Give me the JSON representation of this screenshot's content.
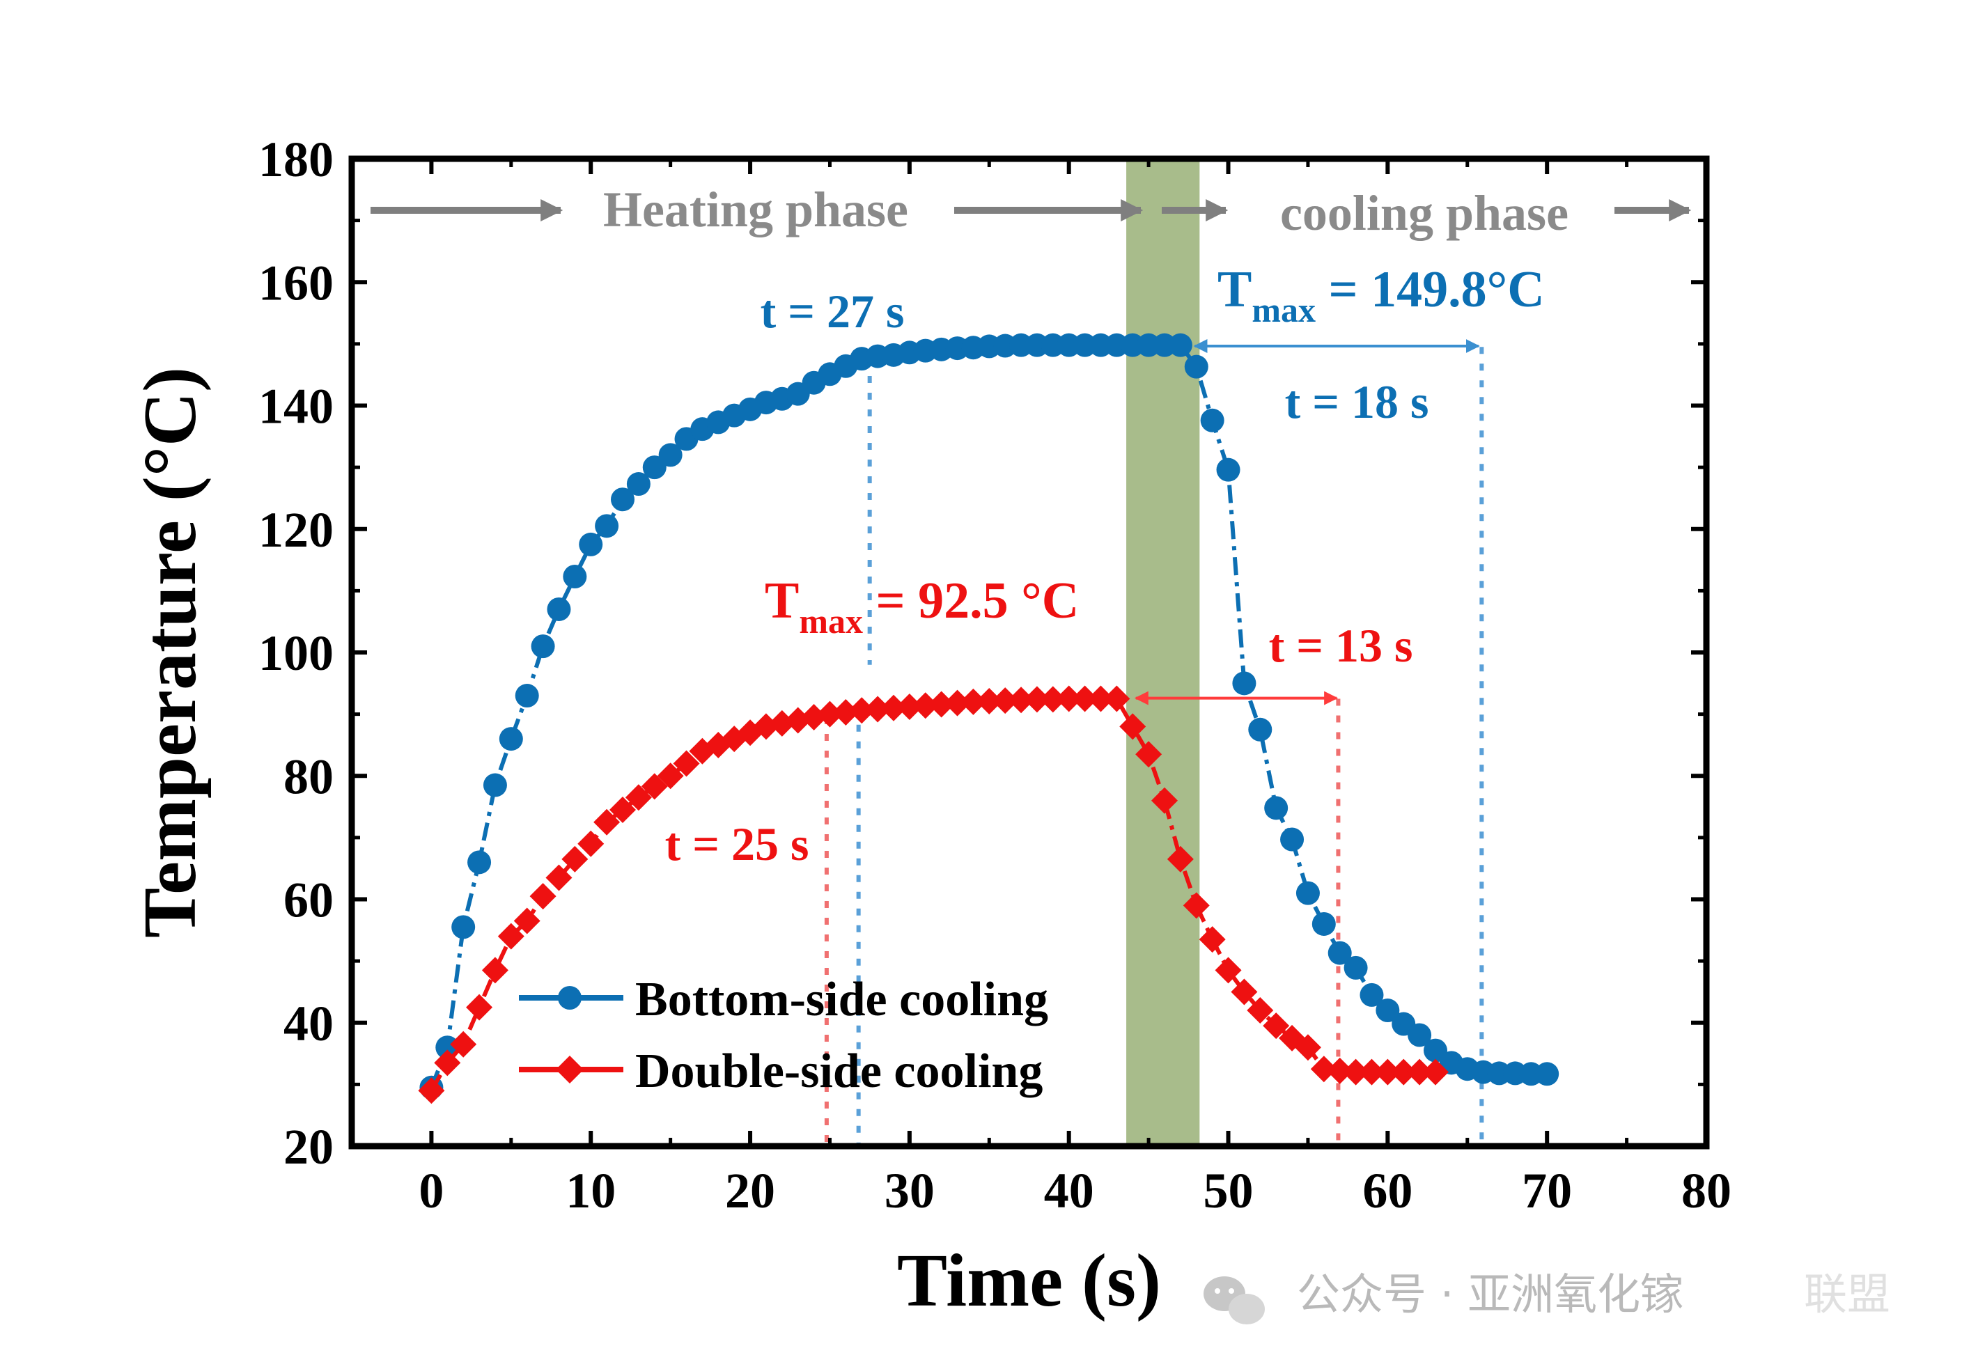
{
  "chart_data": {
    "type": "line",
    "xlabel": "Time (s)",
    "ylabel": "Temperature (°C)",
    "xlim": [
      -5,
      80
    ],
    "ylim": [
      20,
      180
    ],
    "xticks": [
      0,
      10,
      20,
      30,
      40,
      50,
      60,
      70,
      80
    ],
    "yticks": [
      20,
      40,
      60,
      80,
      100,
      120,
      140,
      160,
      180
    ],
    "legend_position": "bottom-left",
    "shaded_region": {
      "x": [
        43.6,
        48.2
      ],
      "color": "#99b077"
    },
    "series": [
      {
        "name": "Bottom-side cooling",
        "color": "#0c6fb3",
        "marker": "circle",
        "x": [
          0,
          1,
          2,
          3,
          4,
          5,
          6,
          7,
          8,
          9,
          10,
          11,
          12,
          13,
          14,
          15,
          16,
          17,
          18,
          19,
          20,
          21,
          22,
          23,
          24,
          25,
          26,
          27,
          28,
          29,
          30,
          31,
          32,
          33,
          34,
          35,
          36,
          37,
          38,
          39,
          40,
          41,
          42,
          43,
          44,
          45,
          46,
          47,
          48,
          49,
          50,
          51,
          52,
          53,
          54,
          55,
          56,
          57,
          58,
          59,
          60,
          61,
          62,
          63,
          64,
          65,
          66,
          67,
          68,
          69,
          70
        ],
        "values": [
          29.5,
          36,
          55.5,
          66,
          78.5,
          86,
          93,
          101,
          107,
          112.3,
          117.5,
          120.5,
          124.8,
          127.3,
          130,
          132,
          134.6,
          136.2,
          137.3,
          138.4,
          139.4,
          140.5,
          141.1,
          141.9,
          143.7,
          145.1,
          146.4,
          147.6,
          148,
          148.2,
          148.6,
          148.9,
          149.1,
          149.3,
          149.4,
          149.6,
          149.7,
          149.8,
          149.8,
          149.8,
          149.8,
          149.8,
          149.8,
          149.8,
          149.8,
          149.8,
          149.8,
          149.8,
          146.3,
          137.6,
          129.6,
          95,
          87.5,
          74.8,
          69.7,
          61,
          56,
          51.3,
          48.9,
          44.5,
          42,
          39.8,
          38,
          35.5,
          33.5,
          32.5,
          32,
          31.8,
          31.8,
          31.7,
          31.7
        ]
      },
      {
        "name": "Double-side cooling",
        "color": "#ee1111",
        "marker": "diamond",
        "x": [
          0,
          1,
          2,
          3,
          4,
          5,
          6,
          7,
          8,
          9,
          10,
          11,
          12,
          13,
          14,
          15,
          16,
          17,
          18,
          19,
          20,
          21,
          22,
          23,
          24,
          25,
          26,
          27,
          28,
          29,
          30,
          31,
          32,
          33,
          34,
          35,
          36,
          37,
          38,
          39,
          40,
          41,
          42,
          43,
          44,
          45,
          46,
          47,
          48,
          49,
          50,
          51,
          52,
          53,
          54,
          55,
          56,
          57,
          58,
          59,
          60,
          61,
          62,
          63
        ],
        "values": [
          29,
          33.5,
          36.5,
          42.5,
          48.5,
          54,
          56.5,
          60.5,
          63.5,
          66.5,
          69,
          72.5,
          74.5,
          76.5,
          78.3,
          80,
          82,
          84,
          85,
          86,
          87,
          88,
          88.5,
          89,
          89.5,
          90,
          90.3,
          90.6,
          90.8,
          91,
          91.2,
          91.4,
          91.6,
          91.8,
          92,
          92.1,
          92.2,
          92.3,
          92.4,
          92.4,
          92.5,
          92.5,
          92.5,
          92.5,
          88,
          83.5,
          76,
          66.5,
          59,
          53.5,
          48.5,
          45,
          42,
          39.5,
          37.5,
          36,
          32.5,
          32.2,
          32,
          32,
          32,
          32,
          32,
          32
        ]
      }
    ],
    "annotations": {
      "heating_phase": "Heating phase",
      "cooling_phase": "cooling phase",
      "tmax_blue_main": "T",
      "tmax_blue_sub": "max",
      "tmax_blue_val": " = 149.8°C",
      "tmax_red_main": "T",
      "tmax_red_sub": "max",
      "tmax_red_val": " = 92.5 °C",
      "t27": "t = 27 s",
      "t18": "t = 18 s",
      "t25": "t = 25 s",
      "t13": "t = 13 s",
      "vlines_blue_x": [
        27.5,
        26.8,
        65.9
      ],
      "vlines_red_x": [
        24.8,
        56.9
      ]
    }
  },
  "watermark": {
    "account": "公众号 · 亚洲氧化镓",
    "alliance": "联盟"
  }
}
